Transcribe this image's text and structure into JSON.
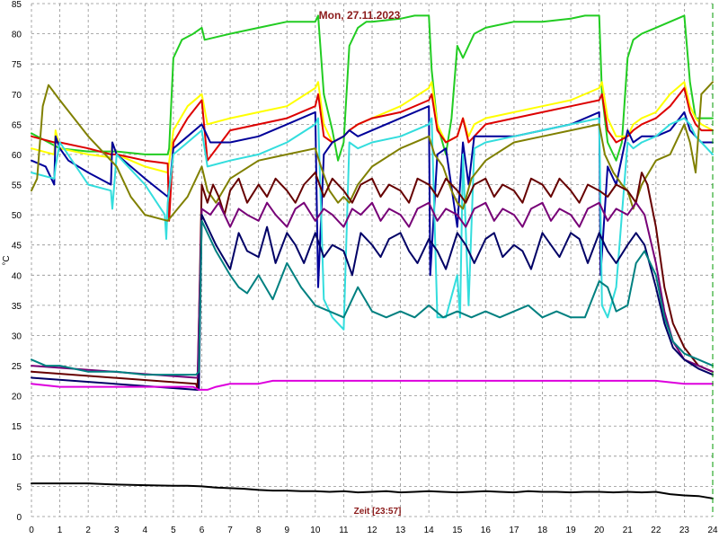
{
  "chart_data": {
    "type": "line",
    "title": "Mon, 27.11.2023",
    "xlabel": "Zeit [23:57]",
    "ylabel": "°C",
    "xlim": [
      0,
      24
    ],
    "ylim": [
      0,
      85
    ],
    "xticks": [
      "0",
      "1",
      "2",
      "3",
      "4",
      "5",
      "6",
      "7",
      "8",
      "9",
      "10",
      "11",
      "12",
      "13",
      "14",
      "15",
      "16",
      "17",
      "18",
      "19",
      "20",
      "21",
      "22",
      "23",
      "24"
    ],
    "yticks": [
      "0",
      "5",
      "10",
      "15",
      "20",
      "25",
      "30",
      "35",
      "40",
      "45",
      "50",
      "55",
      "60",
      "65",
      "70",
      "75",
      "80",
      "85"
    ],
    "grid": true,
    "series": [
      {
        "color": "#22cc22",
        "x": [
          0,
          0.2,
          0.6,
          1.0,
          2,
          3,
          4,
          4.8,
          4.85,
          5.0,
          5.3,
          5.7,
          6.0,
          6.1,
          7,
          8,
          9,
          10,
          10.1,
          10.3,
          10.6,
          10.8,
          11,
          11.2,
          11.5,
          11.8,
          12,
          13,
          13.5,
          14,
          14.1,
          14.3,
          14.6,
          14.8,
          15,
          15.2,
          15.4,
          15.6,
          16,
          17,
          18,
          19,
          19.5,
          20,
          20.1,
          20.3,
          20.6,
          20.8,
          21,
          21.2,
          21.5,
          22,
          23,
          23.2,
          23.4,
          23.6,
          24
        ],
        "y": [
          63.5,
          63,
          62,
          61,
          60.5,
          60.5,
          60,
          60,
          61,
          76,
          79,
          80,
          81,
          79,
          80,
          81,
          82,
          82,
          83,
          70,
          64,
          59,
          62,
          78,
          81,
          82,
          82,
          82.5,
          83,
          83,
          74,
          65,
          60,
          66,
          78,
          76,
          78,
          80,
          81,
          82,
          82,
          82.5,
          83,
          83,
          70,
          62,
          59,
          62,
          76,
          79,
          80,
          81,
          83,
          72,
          66,
          66,
          66
        ]
      },
      {
        "color": "#ffff00",
        "x": [
          0,
          0.8,
          0.85,
          1.0,
          2,
          2.8,
          2.85,
          3,
          4,
          4.8,
          5.0,
          5.5,
          6.0,
          6.2,
          7,
          8,
          9,
          10,
          10.1,
          10.3,
          10.6,
          11,
          11.2,
          11.5,
          12,
          13,
          14,
          14.1,
          14.3,
          14.6,
          15,
          15.2,
          15.4,
          15.6,
          16,
          17,
          18,
          19,
          20,
          20.1,
          20.3,
          20.6,
          21,
          21.2,
          21.5,
          22,
          22.5,
          23,
          23.2,
          23.4,
          23.6,
          24
        ],
        "y": [
          61,
          60,
          64,
          61,
          60,
          59.5,
          62,
          60,
          58,
          57,
          64,
          68,
          70,
          65,
          66,
          67,
          68,
          71,
          72,
          65,
          62,
          63,
          64,
          65,
          66,
          68,
          71,
          72,
          65,
          62,
          63,
          66,
          63,
          65,
          66,
          67,
          68,
          69,
          71,
          72,
          66,
          63,
          63,
          65,
          66,
          67,
          70,
          72,
          68,
          66,
          65,
          64
        ]
      },
      {
        "color": "#dd0000",
        "x": [
          0,
          0.8,
          1.0,
          2,
          2.8,
          3,
          4,
          4.8,
          4.85,
          5.0,
          5.5,
          6.0,
          6.2,
          7,
          8,
          9,
          10,
          10.1,
          10.3,
          10.6,
          11,
          11.2,
          11.5,
          12,
          13,
          14,
          14.1,
          14.3,
          14.6,
          15,
          15.2,
          15.4,
          15.6,
          16,
          17,
          18,
          19,
          20,
          20.1,
          20.3,
          20.6,
          21,
          21.2,
          21.5,
          22,
          22.5,
          23,
          23.2,
          23.4,
          23.6,
          24
        ],
        "y": [
          63,
          62,
          62,
          61,
          60,
          60,
          59,
          58.5,
          49,
          62,
          66,
          69,
          59,
          64,
          65,
          66,
          68,
          70,
          63,
          62,
          63,
          64,
          65,
          66,
          67,
          69,
          70,
          64,
          62,
          63,
          66,
          62,
          63,
          65,
          66,
          67,
          68,
          69,
          70,
          64,
          62,
          63,
          64,
          65,
          66,
          68,
          71,
          67,
          65,
          64,
          64
        ]
      },
      {
        "color": "#000099",
        "x": [
          0,
          0.5,
          0.8,
          0.85,
          1.0,
          1.3,
          2,
          2.8,
          2.85,
          3,
          4,
          4.8,
          4.85,
          5.0,
          5.5,
          6.0,
          6.1,
          6.3,
          7,
          8,
          9,
          10,
          10.1,
          10.3,
          10.6,
          11,
          11.2,
          11.5,
          12,
          13,
          14,
          14.05,
          14.3,
          14.6,
          15,
          15.2,
          15.4,
          15.6,
          16,
          17,
          18,
          19,
          20,
          20.05,
          20.3,
          20.6,
          21,
          21.2,
          21.5,
          22,
          22.5,
          23,
          23.2,
          23.4,
          23.6,
          24
        ],
        "y": [
          59,
          58,
          55,
          63,
          61,
          59,
          57,
          55,
          62,
          60,
          56,
          53,
          54,
          61,
          63,
          65,
          64,
          62,
          62,
          63,
          65,
          67,
          38,
          60,
          62,
          63,
          64,
          63,
          64,
          66,
          68,
          40,
          60,
          61,
          48,
          62,
          55,
          63,
          63,
          63,
          64,
          65,
          67,
          40,
          58,
          55,
          64,
          62,
          63,
          63,
          64,
          67,
          64,
          63,
          62,
          62
        ]
      },
      {
        "color": "#33dddd",
        "x": [
          0,
          0.8,
          0.85,
          1.0,
          2,
          2.8,
          2.85,
          3,
          4,
          4.7,
          4.75,
          4.8,
          5.0,
          5.5,
          6.0,
          6.2,
          7,
          8,
          9,
          10,
          10.1,
          10.3,
          10.6,
          11,
          11.2,
          11.5,
          12,
          13,
          14,
          14.1,
          14.3,
          14.6,
          15,
          15.1,
          15.2,
          15.4,
          15.6,
          16,
          17,
          18,
          19,
          20,
          20.1,
          20.3,
          20.6,
          21,
          21.2,
          21.5,
          22,
          22.5,
          23,
          23.2,
          23.4,
          23.6,
          24
        ],
        "y": [
          57,
          56,
          58,
          62,
          55,
          54,
          51,
          60,
          55,
          50,
          46,
          52,
          60,
          62,
          64,
          58,
          59,
          60,
          62,
          65,
          66,
          36,
          33,
          31,
          62,
          61,
          62,
          63,
          65,
          66,
          33,
          33,
          40,
          33,
          60,
          35,
          61,
          62,
          63,
          64,
          65,
          66,
          35,
          33,
          38,
          62,
          61,
          62,
          63,
          65,
          66,
          65,
          63,
          62,
          60
        ]
      },
      {
        "color": "#808000",
        "x": [
          0,
          0.2,
          0.4,
          0.6,
          1.0,
          2,
          3,
          3.5,
          4,
          4.8,
          5.5,
          6.0,
          6.2,
          6.5,
          7,
          8,
          9,
          10,
          10.2,
          10.5,
          10.8,
          11,
          11.2,
          11.5,
          12,
          13,
          14,
          14.2,
          14.5,
          14.8,
          15,
          15.2,
          15.5,
          16,
          17,
          18,
          19,
          20,
          20.2,
          20.5,
          20.8,
          21,
          21.2,
          21.5,
          22,
          22.5,
          23,
          23.2,
          23.4,
          23.6,
          24
        ],
        "y": [
          54,
          56,
          68,
          71.5,
          69,
          63,
          58,
          53,
          50,
          49,
          53,
          58,
          54,
          52,
          56,
          59,
          60,
          61,
          58,
          54,
          52,
          53,
          52,
          55,
          58,
          61,
          63,
          60,
          58,
          54,
          52,
          51,
          56,
          59,
          62,
          63,
          64,
          65,
          60,
          57,
          55,
          54,
          51,
          55,
          59,
          60,
          65,
          62,
          57,
          70,
          72
        ]
      },
      {
        "color": "#660000",
        "x": [
          0,
          5.8,
          5.85,
          6.0,
          6.2,
          6.4,
          6.6,
          6.8,
          7,
          7.3,
          7.6,
          8,
          8.3,
          8.6,
          9,
          9.3,
          9.6,
          10,
          10.3,
          10.6,
          11,
          11.3,
          11.6,
          12,
          12.3,
          12.6,
          13,
          13.3,
          13.6,
          14,
          14.3,
          14.6,
          15,
          15.3,
          15.6,
          16,
          16.3,
          16.6,
          17,
          17.3,
          17.6,
          18,
          18.3,
          18.6,
          19,
          19.3,
          19.6,
          20,
          20.3,
          20.6,
          21,
          21.3,
          21.5,
          21.7,
          22,
          22.3,
          22.6,
          23,
          23.5,
          24
        ],
        "y": [
          24,
          22,
          21,
          55,
          52,
          55,
          53,
          50,
          54,
          56,
          52,
          55,
          53,
          56,
          54,
          52,
          55,
          57,
          53,
          56,
          54,
          52,
          55,
          56,
          53,
          55,
          54,
          52,
          56,
          55,
          53,
          56,
          54,
          52,
          55,
          56,
          53,
          55,
          54,
          52,
          56,
          55,
          53,
          56,
          54,
          52,
          55,
          54,
          53,
          55,
          54,
          52,
          57,
          55,
          48,
          38,
          32,
          28,
          25,
          24
        ]
      },
      {
        "color": "#770077",
        "x": [
          0,
          5.8,
          5.85,
          6.0,
          6.3,
          6.6,
          7,
          7.3,
          7.6,
          8,
          8.3,
          8.6,
          9,
          9.3,
          9.6,
          10,
          10.3,
          10.6,
          11,
          11.3,
          11.6,
          12,
          12.3,
          12.6,
          13,
          13.3,
          13.6,
          14,
          14.3,
          14.6,
          15,
          15.3,
          15.6,
          16,
          16.3,
          16.6,
          17,
          17.3,
          17.6,
          18,
          18.3,
          18.6,
          19,
          19.3,
          19.6,
          20,
          20.3,
          20.6,
          21,
          21.3,
          21.6,
          22,
          22.3,
          22.6,
          23,
          23.5,
          24
        ],
        "y": [
          25,
          23,
          23,
          51,
          50,
          52,
          48,
          51,
          50,
          49,
          52,
          50,
          48,
          51,
          52,
          49,
          51,
          50,
          48,
          51,
          50,
          52,
          49,
          51,
          50,
          48,
          51,
          52,
          49,
          51,
          50,
          48,
          51,
          52,
          49,
          51,
          50,
          48,
          51,
          52,
          49,
          51,
          50,
          48,
          51,
          52,
          49,
          51,
          50,
          52,
          50,
          42,
          34,
          29,
          26,
          25,
          24
        ]
      },
      {
        "color": "#000066",
        "x": [
          0,
          5.8,
          5.9,
          6.0,
          6.2,
          6.5,
          7,
          7.3,
          7.6,
          8,
          8.3,
          8.6,
          9,
          9.3,
          9.6,
          10,
          10.3,
          10.6,
          11,
          11.3,
          11.6,
          12,
          12.3,
          12.6,
          13,
          13.3,
          13.6,
          14,
          14.3,
          14.6,
          15,
          15.3,
          15.6,
          16,
          16.3,
          16.6,
          17,
          17.3,
          17.6,
          18,
          18.3,
          18.6,
          19,
          19.3,
          19.6,
          20,
          20.3,
          20.6,
          21,
          21.3,
          21.6,
          22,
          22.3,
          22.6,
          23,
          23.5,
          24
        ],
        "y": [
          23,
          21,
          21,
          50,
          48,
          45,
          41,
          47,
          44,
          43,
          48,
          42,
          47,
          45,
          42,
          47,
          43,
          45,
          44,
          40,
          47,
          45,
          43,
          46,
          47,
          44,
          42,
          46,
          44,
          41,
          47,
          45,
          42,
          46,
          47,
          43,
          45,
          44,
          41,
          47,
          45,
          43,
          47,
          46,
          42,
          47,
          44,
          42,
          45,
          47,
          45,
          38,
          32,
          28,
          26,
          24.5,
          23.5
        ]
      },
      {
        "color": "#008080",
        "x": [
          0,
          0.5,
          1,
          2,
          3,
          4,
          5,
          5.8,
          5.9,
          6.0,
          6.2,
          6.5,
          7,
          7.3,
          7.6,
          8,
          8.5,
          9,
          9.5,
          10,
          10.5,
          11,
          11.5,
          12,
          12.5,
          13,
          13.5,
          14,
          14.5,
          15,
          15.5,
          16,
          16.5,
          17,
          17.5,
          18,
          18.5,
          19,
          19.5,
          20,
          20.3,
          20.6,
          21,
          21.3,
          21.6,
          22,
          22.3,
          22.6,
          23,
          23.5,
          24
        ],
        "y": [
          26,
          25,
          25,
          24,
          24,
          23.5,
          23.5,
          23.5,
          24,
          49,
          47,
          44,
          40,
          38,
          37,
          40,
          36,
          42,
          38,
          35,
          34,
          33,
          38,
          34,
          33,
          34,
          33,
          35,
          33,
          34,
          33,
          34,
          33,
          34,
          35,
          33,
          34,
          33,
          33,
          39,
          38,
          34,
          35,
          42,
          44,
          40,
          33,
          29,
          27,
          26,
          25
        ]
      },
      {
        "color": "#dd00dd",
        "x": [
          0,
          1,
          2,
          3,
          4,
          5,
          5.7,
          5.9,
          6.2,
          6.5,
          7,
          8,
          8.5,
          9,
          10,
          11,
          12,
          13,
          14,
          15,
          16,
          17,
          18,
          19,
          20,
          21,
          22,
          23,
          24
        ],
        "y": [
          22,
          21.5,
          21.5,
          21.5,
          21.5,
          21.5,
          21.5,
          21,
          21,
          21.5,
          22,
          22,
          22.5,
          22.5,
          22.5,
          22.5,
          22.5,
          22.5,
          22.5,
          22.5,
          22.5,
          22.5,
          22.5,
          22.5,
          22.5,
          22.5,
          22.5,
          22,
          22
        ]
      },
      {
        "color": "#000000",
        "x": [
          0,
          1,
          2,
          3,
          4,
          5,
          5.5,
          6,
          6.5,
          7,
          7.5,
          8,
          8.5,
          9,
          9.5,
          10,
          10.5,
          11,
          11.5,
          12,
          12.5,
          13,
          13.5,
          14,
          14.5,
          15,
          15.5,
          16,
          16.5,
          17,
          17.5,
          18,
          18.5,
          19,
          19.5,
          20,
          20.5,
          21,
          21.5,
          22,
          22.5,
          23,
          23.5,
          24
        ],
        "y": [
          5.5,
          5.5,
          5.5,
          5.3,
          5.2,
          5.1,
          5.1,
          5.0,
          4.8,
          4.7,
          4.6,
          4.4,
          4.3,
          4.3,
          4.2,
          4.2,
          4.1,
          4.2,
          4.0,
          4.1,
          4.2,
          4.0,
          4.1,
          4.2,
          4.1,
          4.0,
          4.1,
          4.2,
          4.1,
          4.0,
          4.2,
          4.1,
          4.1,
          4.0,
          4.1,
          4.1,
          4.0,
          4.1,
          4.0,
          4.1,
          3.7,
          3.5,
          3.4,
          3.0
        ]
      }
    ]
  }
}
